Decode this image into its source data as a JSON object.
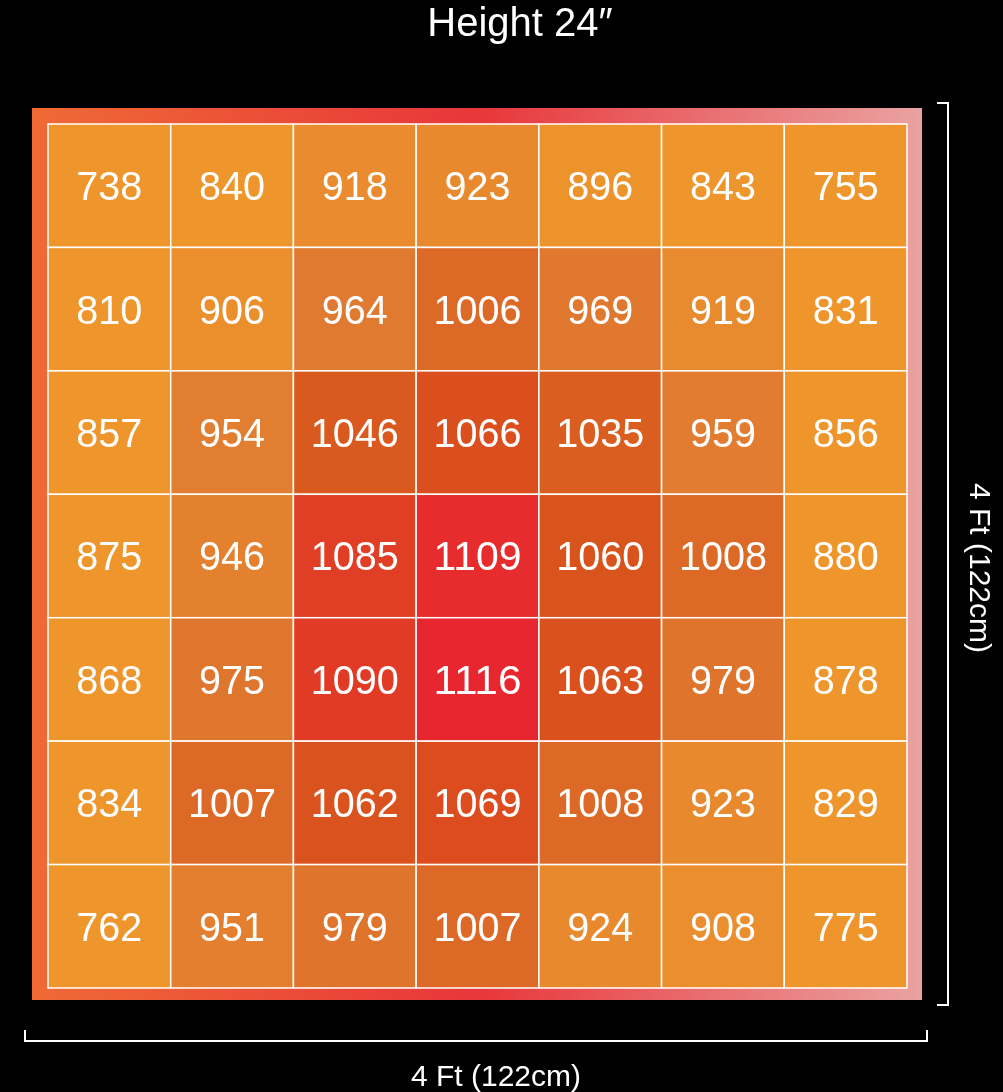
{
  "chart_data": {
    "type": "heatmap",
    "title": "Height 24″",
    "xlabel": "4 Ft (122cm)",
    "ylabel": "4 Ft (122cm)",
    "categories": [
      null,
      null,
      null,
      null,
      null,
      null,
      null
    ],
    "y_categories": [
      null,
      null,
      null,
      null,
      null,
      null,
      null
    ],
    "cells": [
      [
        738,
        840,
        918,
        923,
        896,
        843,
        755
      ],
      [
        810,
        906,
        964,
        1006,
        969,
        919,
        831
      ],
      [
        857,
        954,
        1046,
        1066,
        1035,
        959,
        856
      ],
      [
        875,
        946,
        1085,
        1109,
        1060,
        1008,
        880
      ],
      [
        868,
        975,
        1090,
        1116,
        1063,
        979,
        878
      ],
      [
        834,
        1007,
        1062,
        1069,
        1008,
        923,
        829
      ],
      [
        762,
        951,
        979,
        1007,
        924,
        908,
        775
      ]
    ],
    "data_labels": true
  }
}
